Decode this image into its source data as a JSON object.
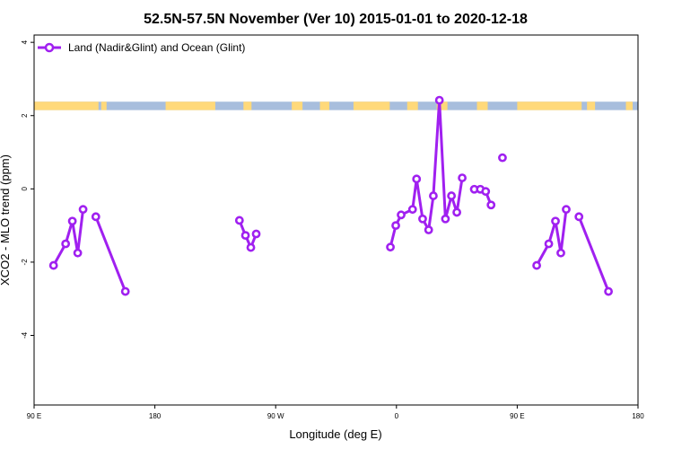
{
  "chart_data": {
    "type": "line",
    "title": "52.5N-57.5N November (Ver 10)   2015-01-01 to 2020-12-18",
    "xlabel": "Longitude (deg E)",
    "ylabel": "XCO2 - MLO trend (ppm)",
    "xlim": [
      90,
      540
    ],
    "ylim": [
      -5.9,
      4.2
    ],
    "x_ticks": [
      {
        "value": 90,
        "label": "90 E"
      },
      {
        "value": 180,
        "label": "180"
      },
      {
        "value": 270,
        "label": "90 W"
      },
      {
        "value": 360,
        "label": "0"
      },
      {
        "value": 450,
        "label": "90 E"
      },
      {
        "value": 540,
        "label": "180"
      }
    ],
    "y_ticks": [
      {
        "value": 4,
        "label": "4"
      },
      {
        "value": 2,
        "label": "2"
      },
      {
        "value": 0,
        "label": "0"
      },
      {
        "value": -2,
        "label": "-2"
      },
      {
        "value": -4,
        "label": "-4"
      }
    ],
    "legend": {
      "position": "top-left",
      "label": "Land (Nadir&Glint) and Ocean (Glint)"
    },
    "series": [
      {
        "name": "Land (Nadir&Glint) and Ocean (Glint)",
        "color": "#a020f0",
        "segments": [
          [
            [
              104.5,
              -2.09
            ],
            [
              113.5,
              -1.5
            ],
            [
              118.5,
              -0.88
            ],
            [
              122.5,
              -1.75
            ],
            [
              126.5,
              -0.56
            ]
          ],
          [
            [
              136,
              -0.76
            ],
            [
              158,
              -2.8
            ]
          ],
          [
            [
              243,
              -0.86
            ],
            [
              247.5,
              -1.27
            ],
            [
              251.5,
              -1.6
            ],
            [
              255.5,
              -1.23
            ]
          ],
          [
            [
              355.5,
              -1.59
            ],
            [
              359.5,
              -1.0
            ],
            [
              363.5,
              -0.71
            ],
            [
              372,
              -0.56
            ],
            [
              375,
              0.27
            ],
            [
              379.5,
              -0.82
            ],
            [
              384,
              -1.12
            ],
            [
              387.5,
              -0.19
            ],
            [
              392,
              2.42
            ],
            [
              396.5,
              -0.82
            ],
            [
              401,
              -0.19
            ],
            [
              405,
              -0.64
            ],
            [
              409,
              0.3
            ]
          ],
          [
            [
              418,
              -0.01
            ],
            [
              422.5,
              -0.01
            ],
            [
              426.5,
              -0.07
            ],
            [
              430.5,
              -0.44
            ]
          ],
          [
            [
              464.5,
              -2.09
            ],
            [
              473.5,
              -1.5
            ],
            [
              478.5,
              -0.88
            ],
            [
              482.5,
              -1.75
            ],
            [
              486.5,
              -0.56
            ]
          ],
          [
            [
              496,
              -0.76
            ],
            [
              518,
              -2.8
            ]
          ]
        ],
        "points": [
          [
            439,
            0.85
          ]
        ]
      }
    ],
    "land_ocean_band": {
      "y_range": [
        2.15,
        2.38
      ],
      "ocean_color": "#a8bedd",
      "land_color": "#ffd97a",
      "land_intervals": [
        [
          90,
          138
        ],
        [
          140,
          144
        ],
        [
          188,
          225
        ],
        [
          246,
          252
        ],
        [
          282,
          290
        ],
        [
          303,
          310
        ],
        [
          328,
          355
        ],
        [
          368,
          376
        ],
        [
          390,
          398
        ],
        [
          420,
          428
        ],
        [
          450,
          498
        ],
        [
          502,
          508
        ],
        [
          531,
          536
        ]
      ]
    }
  }
}
